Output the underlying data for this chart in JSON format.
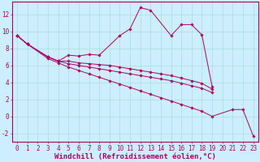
{
  "xlabel": "Windchill (Refroidissement éolien,°C)",
  "background_color": "#cceeff",
  "line_color": "#aa0066",
  "grid_color": "#aadddd",
  "x_ticks": [
    0,
    1,
    2,
    3,
    4,
    5,
    6,
    7,
    8,
    9,
    10,
    11,
    12,
    13,
    14,
    15,
    16,
    17,
    18,
    19,
    20,
    21,
    22,
    23
  ],
  "yticks": [
    -2,
    0,
    2,
    4,
    6,
    8,
    10,
    12
  ],
  "ylim": [
    -3.0,
    13.5
  ],
  "xlim": [
    -0.5,
    23.5
  ],
  "s1_x": [
    0,
    1,
    3,
    4,
    5,
    6,
    7,
    8,
    10,
    11,
    12,
    13,
    15,
    16,
    17,
    18,
    19
  ],
  "s1_y": [
    9.5,
    8.5,
    7.0,
    6.5,
    7.2,
    7.1,
    7.3,
    7.2,
    9.5,
    10.3,
    12.8,
    12.5,
    9.5,
    10.8,
    10.8,
    9.6,
    3.5
  ],
  "s2_x": [
    0,
    1,
    3,
    4,
    5,
    6,
    7,
    8,
    9,
    10,
    11,
    12,
    13,
    14,
    15,
    16,
    17,
    18,
    19
  ],
  "s2_y": [
    9.5,
    8.5,
    7.0,
    6.5,
    6.5,
    6.3,
    6.2,
    6.1,
    6.0,
    5.8,
    5.6,
    5.4,
    5.2,
    5.0,
    4.8,
    4.5,
    4.2,
    3.9,
    3.2
  ],
  "s3_x": [
    0,
    1,
    3,
    4,
    5,
    6,
    7,
    8,
    9,
    10,
    11,
    12,
    13,
    14,
    15,
    16,
    17,
    18,
    19
  ],
  "s3_y": [
    9.5,
    8.5,
    7.0,
    6.5,
    6.2,
    6.0,
    5.8,
    5.6,
    5.4,
    5.2,
    5.0,
    4.8,
    4.6,
    4.4,
    4.2,
    3.9,
    3.6,
    3.3,
    2.8
  ],
  "s4_x": [
    0,
    1,
    3,
    4,
    5,
    6,
    7,
    8,
    9,
    10,
    11,
    12,
    13,
    14,
    15,
    16,
    17,
    18,
    19,
    21,
    22,
    23
  ],
  "s4_y": [
    9.5,
    8.5,
    6.8,
    6.3,
    5.8,
    5.4,
    5.0,
    4.6,
    4.2,
    3.8,
    3.4,
    3.0,
    2.6,
    2.2,
    1.8,
    1.4,
    1.0,
    0.6,
    0.0,
    0.8,
    0.8,
    -2.3
  ],
  "tick_fontsize": 5.5,
  "label_fontsize": 6.5
}
